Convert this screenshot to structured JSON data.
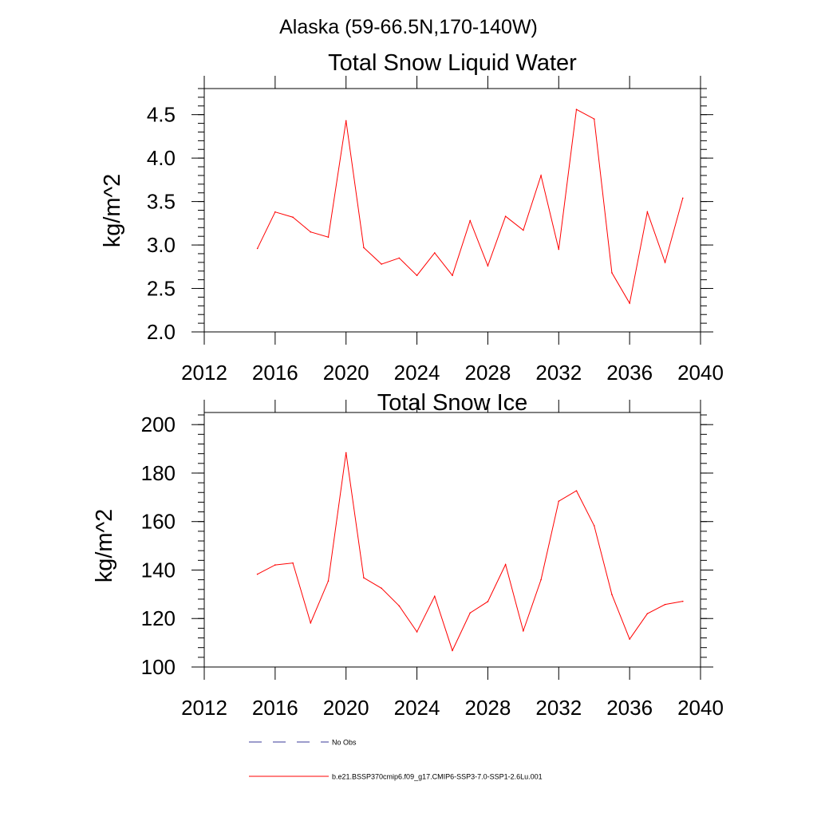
{
  "suptitle": "Alaska (59-66.5N,170-140W)",
  "colors": {
    "series": "#ff0000",
    "no_obs": "#3a3a9a",
    "axis": "#000000"
  },
  "legend": {
    "no_obs_label": "No Obs",
    "series_label": "b.e21.BSSP370cmip6.f09_g17.CMIP6-SSP3-7.0-SSP1-2.6Lu.001"
  },
  "chart_data": [
    {
      "type": "line",
      "title": "Total Snow Liquid Water",
      "xlabel": "",
      "ylabel": "kg/m^2",
      "xlim": [
        2012,
        2040
      ],
      "ylim": [
        2.0,
        4.8
      ],
      "xticks": [
        "2012",
        "2016",
        "2020",
        "2024",
        "2028",
        "2032",
        "2036",
        "2040"
      ],
      "yticks": [
        "2.0",
        "2.5",
        "3.0",
        "3.5",
        "4.0",
        "4.5"
      ],
      "grid": false,
      "series": [
        {
          "x": [
            2015,
            2016,
            2017,
            2018,
            2019,
            2020,
            2021,
            2022,
            2023,
            2024,
            2025,
            2026,
            2027,
            2028,
            2029,
            2030,
            2031,
            2032,
            2033,
            2034,
            2035,
            2036,
            2037,
            2038,
            2039
          ],
          "y": [
            2.96,
            3.38,
            3.32,
            3.15,
            3.09,
            4.43,
            2.97,
            2.78,
            2.85,
            2.65,
            2.91,
            2.65,
            3.28,
            2.76,
            3.33,
            3.17,
            3.8,
            2.95,
            4.56,
            4.45,
            2.68,
            2.33,
            3.38,
            2.8,
            3.54
          ]
        }
      ]
    },
    {
      "type": "line",
      "title": "Total Snow Ice",
      "xlabel": "",
      "ylabel": "kg/m^2",
      "xlim": [
        2012,
        2040
      ],
      "ylim": [
        100,
        205
      ],
      "xticks": [
        "2012",
        "2016",
        "2020",
        "2024",
        "2028",
        "2032",
        "2036",
        "2040"
      ],
      "yticks": [
        "100",
        "120",
        "140",
        "160",
        "180",
        "200"
      ],
      "grid": false,
      "series": [
        {
          "x": [
            2015,
            2016,
            2017,
            2018,
            2019,
            2020,
            2021,
            2022,
            2023,
            2024,
            2025,
            2026,
            2027,
            2028,
            2029,
            2030,
            2031,
            2032,
            2033,
            2034,
            2035,
            2036,
            2037,
            2038,
            2039
          ],
          "y": [
            138.3,
            142.1,
            142.9,
            118.2,
            135.5,
            188.4,
            136.8,
            132.5,
            125.2,
            114.5,
            129.2,
            106.8,
            122.3,
            127.0,
            142.3,
            114.9,
            136.0,
            168.4,
            172.7,
            158.3,
            129.9,
            111.5,
            122.0,
            125.8,
            127.1
          ]
        }
      ]
    }
  ]
}
